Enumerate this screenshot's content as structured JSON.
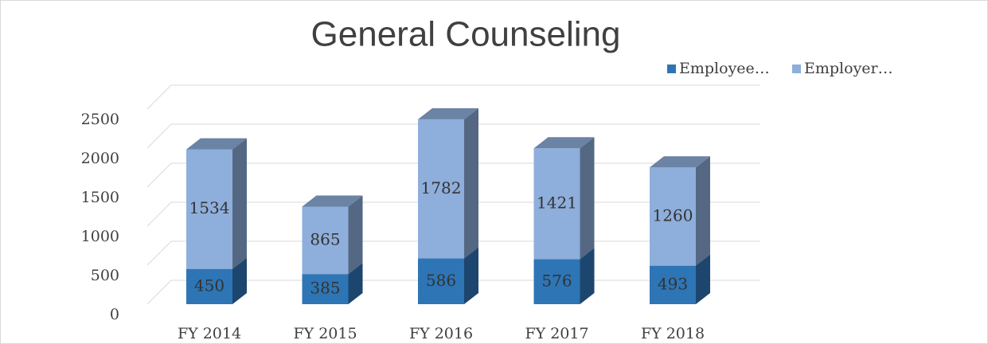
{
  "chart_data": {
    "type": "bar3d_stacked",
    "title": "General Counseling",
    "categories": [
      "FY 2014",
      "FY 2015",
      "FY 2016",
      "FY 2017",
      "FY 2018"
    ],
    "series": [
      {
        "name": "Employee…",
        "color": "#2e75b6",
        "values": [
          450,
          385,
          586,
          576,
          493
        ]
      },
      {
        "name": "Employer…",
        "color": "#8eaedb",
        "values": [
          1534,
          865,
          1782,
          1421,
          1260
        ]
      }
    ],
    "ylim": [
      0,
      2500
    ],
    "yticks": [
      0,
      500,
      1000,
      1500,
      2000,
      2500
    ],
    "grid": true,
    "legend": "top-right"
  }
}
